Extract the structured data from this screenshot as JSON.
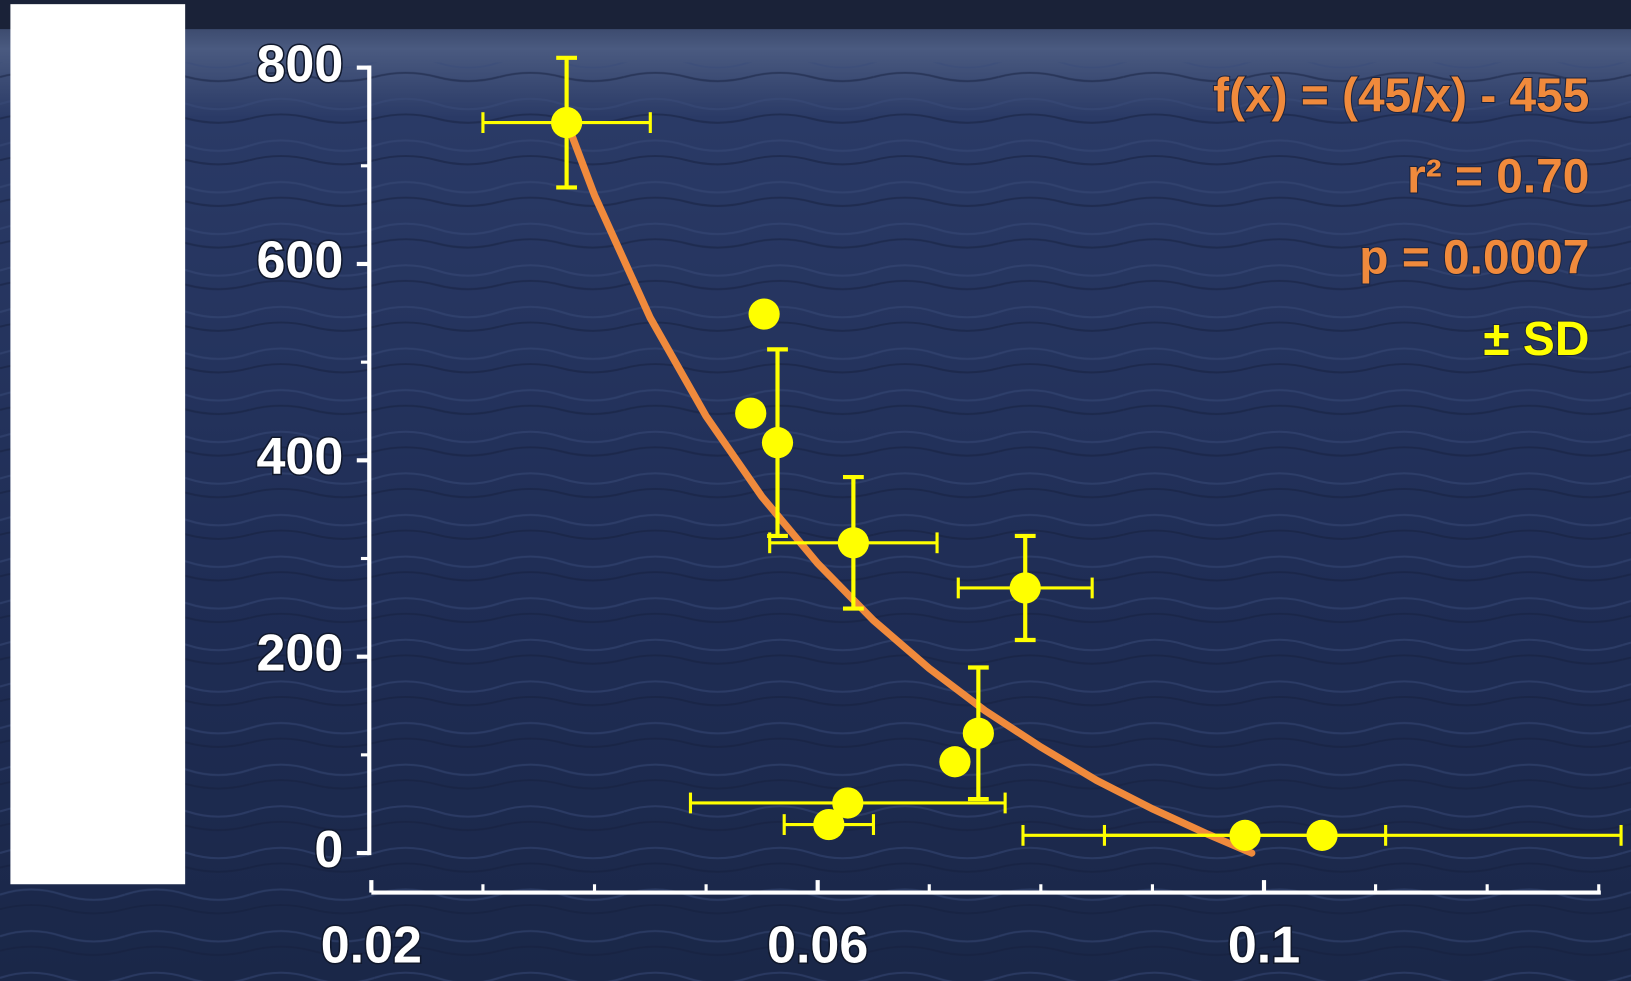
{
  "chart_data": {
    "type": "scatter",
    "annotations": [
      "f(x) = (45/x) - 455",
      "r² = 0.70",
      "p = 0.0007",
      "± SD"
    ],
    "annotation_colors": [
      "#f08a3c",
      "#f08a3c",
      "#f08a3c",
      "#ffff00"
    ],
    "xlim": [
      0.02,
      0.13
    ],
    "xticks": [
      0.02,
      0.06,
      0.1
    ],
    "ylim": [
      0,
      800
    ],
    "yticks": [
      0,
      200,
      400,
      600,
      800
    ],
    "series": [
      {
        "color": "#ffff00",
        "x": [
          0.0375,
          0.0552,
          0.054,
          0.0564,
          0.0632,
          0.0786,
          0.0744,
          0.0723,
          0.0627,
          0.061,
          0.0983,
          0.1052
        ],
        "values": [
          744,
          549,
          448,
          418,
          316,
          270,
          122,
          93,
          51,
          29,
          18,
          18
        ],
        "xerr": [
          0.0075,
          null,
          null,
          null,
          0.0075,
          0.006,
          null,
          null,
          0.0141,
          0.004,
          0.0126,
          0.0268
        ],
        "yerr": [
          66,
          null,
          null,
          95,
          67,
          53,
          67,
          null,
          null,
          null,
          null,
          null
        ]
      }
    ],
    "fit": {
      "color": "#f08a3c",
      "x": [
        0.0375,
        0.04,
        0.045,
        0.05,
        0.055,
        0.06,
        0.065,
        0.07,
        0.075,
        0.08,
        0.085,
        0.09,
        0.095,
        0.0989
      ],
      "values": [
        745,
        670,
        545,
        445,
        363,
        295,
        237,
        188,
        145,
        108,
        74,
        45,
        19,
        0
      ]
    }
  }
}
